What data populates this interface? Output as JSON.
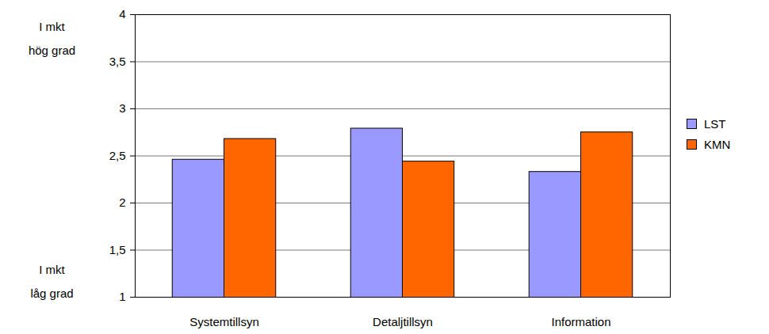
{
  "chart_data": {
    "type": "bar",
    "categories": [
      "Systemtillsyn",
      "Detaljtillsyn",
      "Information"
    ],
    "series": [
      {
        "name": "LST",
        "color": "#9999ff",
        "values": [
          2.46,
          2.79,
          2.33
        ]
      },
      {
        "name": "KMN",
        "color": "#ff6600",
        "values": [
          2.68,
          2.44,
          2.75
        ]
      }
    ],
    "ylim": [
      1,
      4
    ],
    "yticks": [
      1,
      {
        "value": 1.5,
        "label": "1,5"
      },
      2,
      {
        "value": 2.5,
        "label": "2,5"
      },
      3,
      {
        "value": 3.5,
        "label": "3,5"
      },
      4
    ],
    "grid": true,
    "legend": "right",
    "annotations": [
      {
        "text": [
          "I mkt",
          "hög grad"
        ],
        "y": 4
      },
      {
        "text": [
          "I mkt",
          "låg grad"
        ],
        "y": 1
      }
    ]
  }
}
